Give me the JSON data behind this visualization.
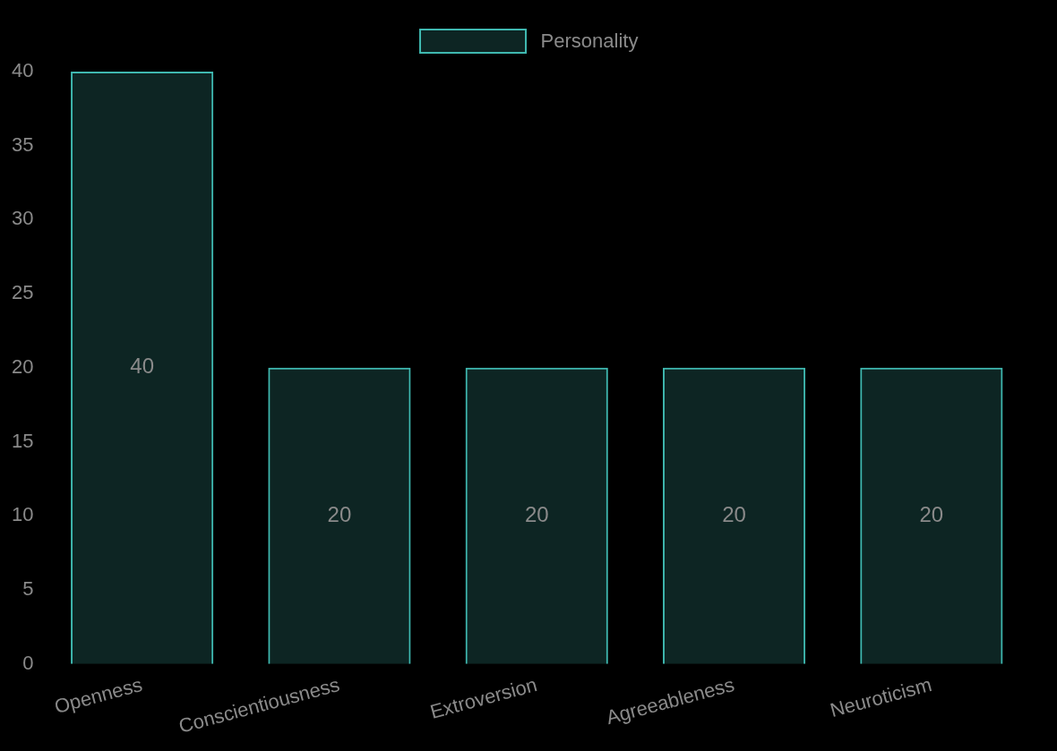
{
  "chart_data": {
    "type": "bar",
    "categories": [
      "Openness",
      "Conscientiousness",
      "Extroversion",
      "Agreeableness",
      "Neuroticism"
    ],
    "series": [
      {
        "name": "Personality",
        "color": "#3fb8b0",
        "values": [
          40,
          20,
          20,
          20,
          20
        ]
      }
    ],
    "ylim": [
      0,
      40
    ],
    "yticks": [
      0,
      5,
      10,
      15,
      20,
      25,
      30,
      35,
      40
    ],
    "grid": false,
    "legend": "top",
    "data_labels": true
  }
}
